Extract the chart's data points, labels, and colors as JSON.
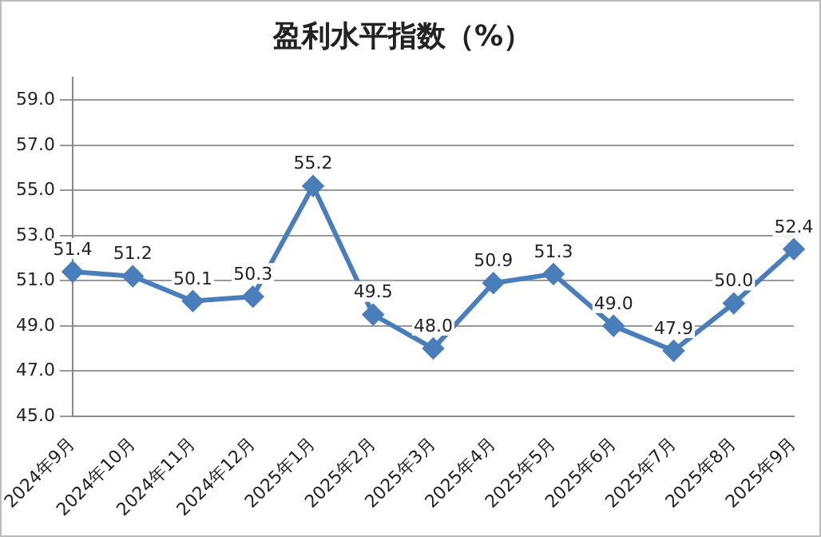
{
  "chart_data": {
    "type": "line",
    "title": "盈利水平指数（%）",
    "categories": [
      "2024年9月",
      "2024年10月",
      "2024年11月",
      "2024年12月",
      "2025年1月",
      "2025年2月",
      "2025年3月",
      "2025年4月",
      "2025年5月",
      "2025年6月",
      "2025年7月",
      "2025年8月",
      "2025年9月"
    ],
    "values": [
      51.4,
      51.2,
      50.1,
      50.3,
      55.2,
      49.5,
      48.0,
      50.9,
      51.3,
      49.0,
      47.9,
      50.0,
      52.4
    ],
    "color": "#4a7ebb",
    "ylim": [
      45,
      60
    ],
    "yticks": [
      {
        "value": 45,
        "label": "45.0"
      },
      {
        "value": 47,
        "label": "47.0"
      },
      {
        "value": 49,
        "label": "49.0"
      },
      {
        "value": 51,
        "label": "51.0"
      },
      {
        "value": 53,
        "label": "53.0"
      },
      {
        "value": 55,
        "label": "55.0"
      },
      {
        "value": 57,
        "label": "57.0"
      },
      {
        "value": 59,
        "label": "59.0"
      }
    ],
    "value_labels": [
      "51.4",
      "51.2",
      "50.1",
      "50.3",
      "55.2",
      "49.5",
      "48.0",
      "50.9",
      "51.3",
      "49.0",
      "47.9",
      "50.0",
      "52.4"
    ],
    "grid": "y",
    "legend": false,
    "marker": "diamond",
    "line_style": "solid"
  }
}
